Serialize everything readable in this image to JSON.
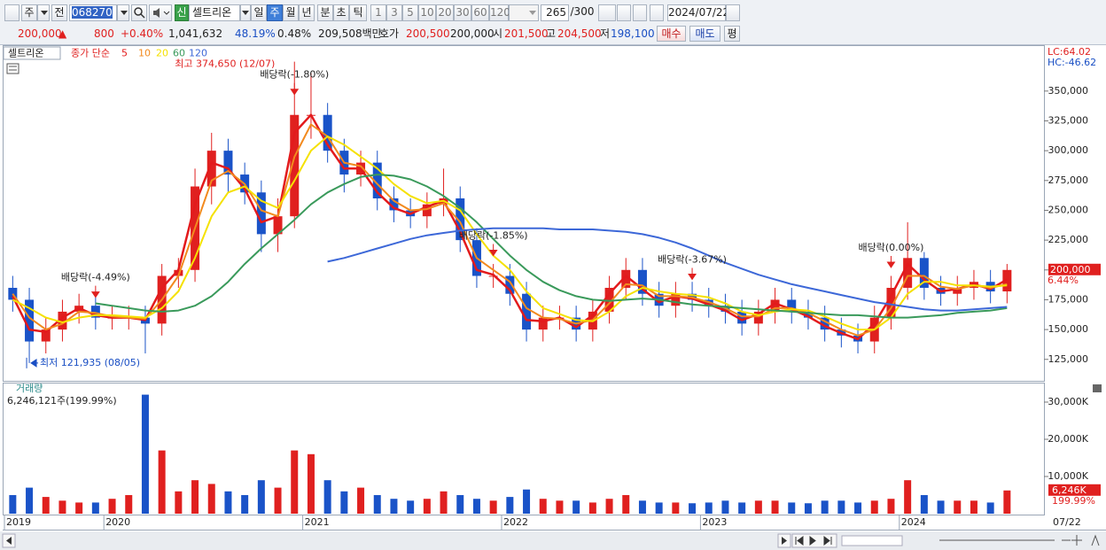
{
  "toolbar": {
    "items": [
      "주",
      "전",
      "068270",
      "신",
      "셀트리온",
      "일",
      "주",
      "월",
      "년",
      "분",
      "초",
      "틱",
      "1",
      "3",
      "5",
      "10",
      "20",
      "30",
      "60",
      "120",
      "265",
      "/300",
      "2024/07/22"
    ]
  },
  "info_bar": {
    "items": [
      "200,000",
      "▲",
      "800",
      "+0.40%",
      "1,041,632",
      "48.19%",
      "0.48%",
      "209,508백만",
      "호가",
      "200,500",
      "200,000",
      "시",
      "201,500",
      "고",
      "204,500",
      "저",
      "198,100",
      "매수",
      "매도",
      "평"
    ]
  },
  "chart_data": [
    {
      "type": "candlestick",
      "title": "셀트리온",
      "legend_title": "종가 단순",
      "up_color": "#e0201f",
      "down_color": "#1a53c8",
      "open": [
        185000,
        175000,
        140000,
        150000,
        165000,
        170000,
        160000,
        160000,
        160000,
        155000,
        195000,
        200000,
        270000,
        300000,
        280000,
        265000,
        230000,
        245000,
        330000,
        330000,
        300000,
        280000,
        290000,
        260000,
        250000,
        245000,
        255000,
        260000,
        225000,
        195000,
        195000,
        180000,
        150000,
        160000,
        160000,
        150000,
        165000,
        185000,
        200000,
        180000,
        170000,
        180000,
        175000,
        170000,
        165000,
        155000,
        165000,
        175000,
        165000,
        160000,
        150000,
        145000,
        140000,
        160000,
        185000,
        210000,
        185000,
        180000,
        185000,
        190000,
        182000
      ],
      "high": [
        195000,
        185000,
        160000,
        175000,
        180000,
        180000,
        170000,
        170000,
        170000,
        205000,
        210000,
        285000,
        315000,
        310000,
        290000,
        275000,
        260000,
        374650,
        365000,
        340000,
        310000,
        300000,
        300000,
        270000,
        260000,
        265000,
        285000,
        270000,
        235000,
        205000,
        205000,
        190000,
        170000,
        170000,
        170000,
        175000,
        195000,
        210000,
        210000,
        190000,
        190000,
        190000,
        185000,
        180000,
        175000,
        175000,
        185000,
        185000,
        175000,
        170000,
        160000,
        155000,
        170000,
        195000,
        240000,
        215000,
        195000,
        195000,
        200000,
        200000,
        205000
      ],
      "low": [
        165000,
        121935,
        130000,
        140000,
        155000,
        150000,
        150000,
        150000,
        130000,
        145000,
        185000,
        190000,
        255000,
        265000,
        255000,
        215000,
        215000,
        235000,
        310000,
        290000,
        265000,
        270000,
        250000,
        240000,
        235000,
        235000,
        245000,
        215000,
        185000,
        185000,
        170000,
        140000,
        140000,
        150000,
        140000,
        140000,
        155000,
        175000,
        170000,
        160000,
        160000,
        165000,
        160000,
        155000,
        145000,
        145000,
        155000,
        155000,
        150000,
        140000,
        135000,
        130000,
        130000,
        150000,
        175000,
        175000,
        170000,
        170000,
        175000,
        172000,
        172000
      ],
      "close": [
        175000,
        140000,
        150000,
        165000,
        170000,
        160000,
        160000,
        160000,
        155000,
        195000,
        200000,
        270000,
        300000,
        280000,
        265000,
        230000,
        245000,
        330000,
        330000,
        300000,
        280000,
        290000,
        260000,
        250000,
        245000,
        255000,
        260000,
        225000,
        195000,
        195000,
        180000,
        150000,
        160000,
        160000,
        150000,
        165000,
        185000,
        200000,
        180000,
        170000,
        180000,
        175000,
        170000,
        165000,
        155000,
        165000,
        175000,
        165000,
        160000,
        150000,
        145000,
        140000,
        160000,
        185000,
        210000,
        185000,
        180000,
        185000,
        190000,
        182000,
        200000
      ],
      "series": [
        {
          "name": "5",
          "color": "#e31a1c",
          "values": [
            178000,
            150000,
            148000,
            160000,
            168000,
            162000,
            160000,
            160000,
            158000,
            185000,
            200000,
            255000,
            290000,
            285000,
            268000,
            240000,
            245000,
            315000,
            330000,
            305000,
            285000,
            285000,
            265000,
            252000,
            247000,
            253000,
            258000,
            232000,
            200000,
            196000,
            183000,
            158000,
            157000,
            160000,
            152000,
            162000,
            180000,
            195000,
            184000,
            173000,
            178000,
            176000,
            171000,
            166000,
            158000,
            163000,
            172000,
            167000,
            161000,
            153000,
            147000,
            142000,
            155000,
            178000,
            205000,
            192000,
            182000,
            184000,
            188000,
            184000,
            192000
          ]
        },
        {
          "name": "10",
          "color": "#f28a1e",
          "values": [
            180000,
            160000,
            150000,
            155000,
            165000,
            164000,
            161000,
            160000,
            159000,
            175000,
            195000,
            235000,
            275000,
            283000,
            272000,
            250000,
            245000,
            295000,
            322000,
            312000,
            290000,
            287000,
            272000,
            258000,
            250000,
            251000,
            256000,
            240000,
            210000,
            200000,
            190000,
            168000,
            160000,
            159000,
            155000,
            158000,
            172000,
            188000,
            187000,
            178000,
            178000,
            177000,
            173000,
            168000,
            161000,
            161000,
            168000,
            168000,
            164000,
            157000,
            150000,
            145000,
            150000,
            168000,
            195000,
            195000,
            186000,
            184000,
            187000,
            185000,
            188000
          ]
        },
        {
          "name": "20",
          "color": "#f5e100",
          "values": [
            175000,
            168000,
            160000,
            156000,
            160000,
            162000,
            162000,
            161000,
            160000,
            168000,
            182000,
            210000,
            245000,
            265000,
            270000,
            258000,
            252000,
            275000,
            300000,
            312000,
            305000,
            295000,
            285000,
            272000,
            262000,
            256000,
            258000,
            250000,
            230000,
            212000,
            200000,
            182000,
            168000,
            163000,
            158000,
            157000,
            165000,
            178000,
            185000,
            182000,
            180000,
            179000,
            177000,
            172000,
            165000,
            162000,
            165000,
            167000,
            166000,
            161000,
            155000,
            150000,
            150000,
            160000,
            180000,
            190000,
            190000,
            187000,
            187000,
            186000,
            187000
          ]
        },
        {
          "name": "60",
          "color": "#3a9a5b",
          "values": [
            null,
            null,
            null,
            null,
            null,
            172000,
            170000,
            168000,
            166000,
            165000,
            166000,
            170000,
            178000,
            190000,
            205000,
            218000,
            230000,
            242000,
            255000,
            265000,
            272000,
            278000,
            280000,
            279000,
            276000,
            270000,
            262000,
            252000,
            240000,
            226000,
            212000,
            200000,
            190000,
            183000,
            178000,
            175000,
            174000,
            175000,
            176000,
            175000,
            173000,
            171000,
            170000,
            169000,
            168000,
            167000,
            166000,
            165000,
            164000,
            163000,
            162000,
            162000,
            161000,
            160000,
            160000,
            161000,
            162000,
            164000,
            165000,
            166000,
            168000
          ]
        },
        {
          "name": "120",
          "color": "#3d68d8",
          "values": [
            null,
            null,
            null,
            null,
            null,
            null,
            null,
            null,
            null,
            null,
            null,
            null,
            null,
            null,
            null,
            null,
            null,
            null,
            null,
            207000,
            210000,
            214000,
            218000,
            222000,
            226000,
            229000,
            231000,
            233000,
            234000,
            235000,
            235000,
            235000,
            235000,
            234000,
            234000,
            234000,
            233000,
            232000,
            230000,
            227000,
            223000,
            218000,
            212000,
            206000,
            201000,
            196000,
            192000,
            188000,
            185000,
            182000,
            179000,
            176000,
            173000,
            171000,
            169000,
            167000,
            166000,
            166000,
            167000,
            168000,
            169000
          ]
        }
      ],
      "ylim": [
        107000,
        387000
      ],
      "yticks": [
        {
          "value": 125000,
          "label": "125,000"
        },
        {
          "value": 150000,
          "label": "150,000"
        },
        {
          "value": 175000,
          "label": "175,000"
        },
        {
          "value": 200000,
          "label": "200,000"
        },
        {
          "value": 225000,
          "label": "225,000"
        },
        {
          "value": 250000,
          "label": "250,000"
        },
        {
          "value": 275000,
          "label": "275,000"
        },
        {
          "value": 300000,
          "label": "300,000"
        },
        {
          "value": 325000,
          "label": "325,000"
        },
        {
          "value": 350000,
          "label": "350,000"
        }
      ],
      "annotations": [
        {
          "text": "배당락(-4.49%)",
          "index": 5
        },
        {
          "text": "배당락(-1.80%)",
          "index": 17
        },
        {
          "text": "배당락(-1.85%)",
          "index": 29
        },
        {
          "text": "배당락(-3.67%)",
          "index": 41
        },
        {
          "text": "배당락(0.00%)",
          "index": 53
        }
      ],
      "max_label": {
        "text": "최고 374,650 (12/07)",
        "index": 17
      },
      "min_label": {
        "text": "최저 121,935 (08/05)",
        "index": 1
      },
      "last_label": {
        "value": 200000,
        "label": "200,000"
      },
      "change_label": "6.44%",
      "lc_label": "LC:64.02",
      "hc_label": "HC:-46.62"
    },
    {
      "type": "bar",
      "title": "거래량",
      "subtitle": "6,246,121주(199.99%)",
      "categories": [
        "2019",
        null,
        null,
        null,
        null,
        null,
        "2020",
        null,
        null,
        null,
        null,
        null,
        null,
        null,
        null,
        null,
        null,
        null,
        "2021",
        null,
        null,
        null,
        null,
        null,
        null,
        null,
        null,
        null,
        null,
        null,
        "2022",
        null,
        null,
        null,
        null,
        null,
        null,
        null,
        null,
        null,
        null,
        null,
        "2023",
        null,
        null,
        null,
        null,
        null,
        null,
        null,
        null,
        null,
        null,
        null,
        "2024",
        null,
        null,
        null,
        null,
        null,
        null
      ],
      "values": [
        5000,
        7000,
        4500,
        3500,
        3000,
        3000,
        4000,
        5000,
        32000,
        17000,
        6000,
        9000,
        8000,
        6000,
        5000,
        9000,
        7000,
        17000,
        16000,
        9000,
        6000,
        7000,
        5000,
        4000,
        3500,
        4000,
        6000,
        5000,
        4000,
        3500,
        4500,
        6500,
        4000,
        3500,
        3500,
        3000,
        4000,
        5000,
        3500,
        3000,
        3000,
        2800,
        3000,
        3500,
        3000,
        3500,
        3500,
        3000,
        2800,
        3500,
        3500,
        3000,
        3500,
        4000,
        9000,
        5000,
        3500,
        3500,
        3500,
        3000,
        6246
      ],
      "ylim": [
        0,
        32500
      ],
      "yticks": [
        {
          "value": 10000,
          "label": "10,000K"
        },
        {
          "value": 20000,
          "label": "20,000K"
        },
        {
          "value": 30000,
          "label": "30,000K"
        }
      ],
      "last_label": {
        "value": 6246,
        "label": "6,246K"
      },
      "ratio_label": "199.99%",
      "last_date": "07/22"
    }
  ]
}
